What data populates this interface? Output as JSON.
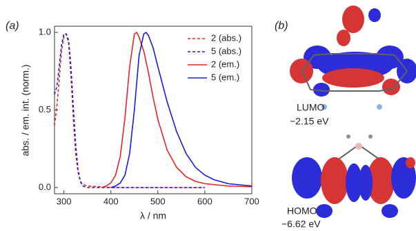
{
  "chart_data": {
    "type": "line",
    "panel_a": "(a)",
    "panel_b": "(b)",
    "xlabel": "λ / nm",
    "ylabel": "abs. / em. int. (norm.)",
    "xlim": [
      280,
      700
    ],
    "xticks": [
      300,
      400,
      500,
      600,
      700
    ],
    "ylim": [
      -0.04,
      1.04
    ],
    "yticks": [
      {
        "value": 0,
        "label": "0.0"
      },
      {
        "value": 0.5,
        "label": "0.5"
      },
      {
        "value": 1,
        "label": "1.0"
      }
    ],
    "legend": "upper right",
    "series": [
      {
        "name": "2 (abs.)",
        "color": "#e8231f",
        "dashed": true,
        "x": [
          280,
          285,
          290,
          295,
          300,
          305,
          310,
          315,
          320,
          325,
          330,
          335,
          340,
          350,
          400,
          500,
          600
        ],
        "values": [
          0.4,
          0.52,
          0.7,
          0.88,
          0.97,
          0.99,
          0.93,
          0.72,
          0.45,
          0.22,
          0.1,
          0.04,
          0.02,
          0.01,
          0,
          0,
          0
        ]
      },
      {
        "name": "5 (abs.)",
        "color": "#1a1adf",
        "dashed": true,
        "x": [
          280,
          285,
          290,
          295,
          300,
          305,
          310,
          315,
          320,
          325,
          330,
          335,
          340,
          350,
          400,
          500,
          600
        ],
        "values": [
          0.6,
          0.65,
          0.78,
          0.92,
          0.99,
          0.99,
          0.95,
          0.78,
          0.52,
          0.28,
          0.12,
          0.04,
          0.01,
          0,
          0,
          0,
          0
        ]
      },
      {
        "name": "2 (em.)",
        "color": "#e8231f",
        "dashed": false,
        "x": [
          380,
          390,
          400,
          410,
          420,
          430,
          440,
          450,
          455,
          460,
          470,
          480,
          490,
          500,
          520,
          540,
          560,
          580,
          600,
          650,
          700
        ],
        "values": [
          0,
          0.01,
          0.03,
          0.08,
          0.2,
          0.45,
          0.78,
          0.99,
          1,
          0.97,
          0.88,
          0.74,
          0.58,
          0.44,
          0.24,
          0.13,
          0.07,
          0.04,
          0.025,
          0.01,
          0.005
        ]
      },
      {
        "name": "5 (em.)",
        "color": "#1a1adf",
        "dashed": false,
        "x": [
          400,
          410,
          420,
          430,
          440,
          450,
          460,
          470,
          475,
          480,
          490,
          500,
          520,
          540,
          560,
          580,
          600,
          620,
          650,
          700
        ],
        "values": [
          0,
          0.01,
          0.03,
          0.08,
          0.22,
          0.5,
          0.85,
          0.99,
          1,
          0.98,
          0.9,
          0.78,
          0.55,
          0.36,
          0.22,
          0.13,
          0.08,
          0.05,
          0.025,
          0.01
        ]
      }
    ],
    "orbitals": [
      {
        "name": "LUMO",
        "energy": "−2.15 eV"
      },
      {
        "name": "HOMO",
        "energy": "−6.62 eV"
      }
    ]
  }
}
